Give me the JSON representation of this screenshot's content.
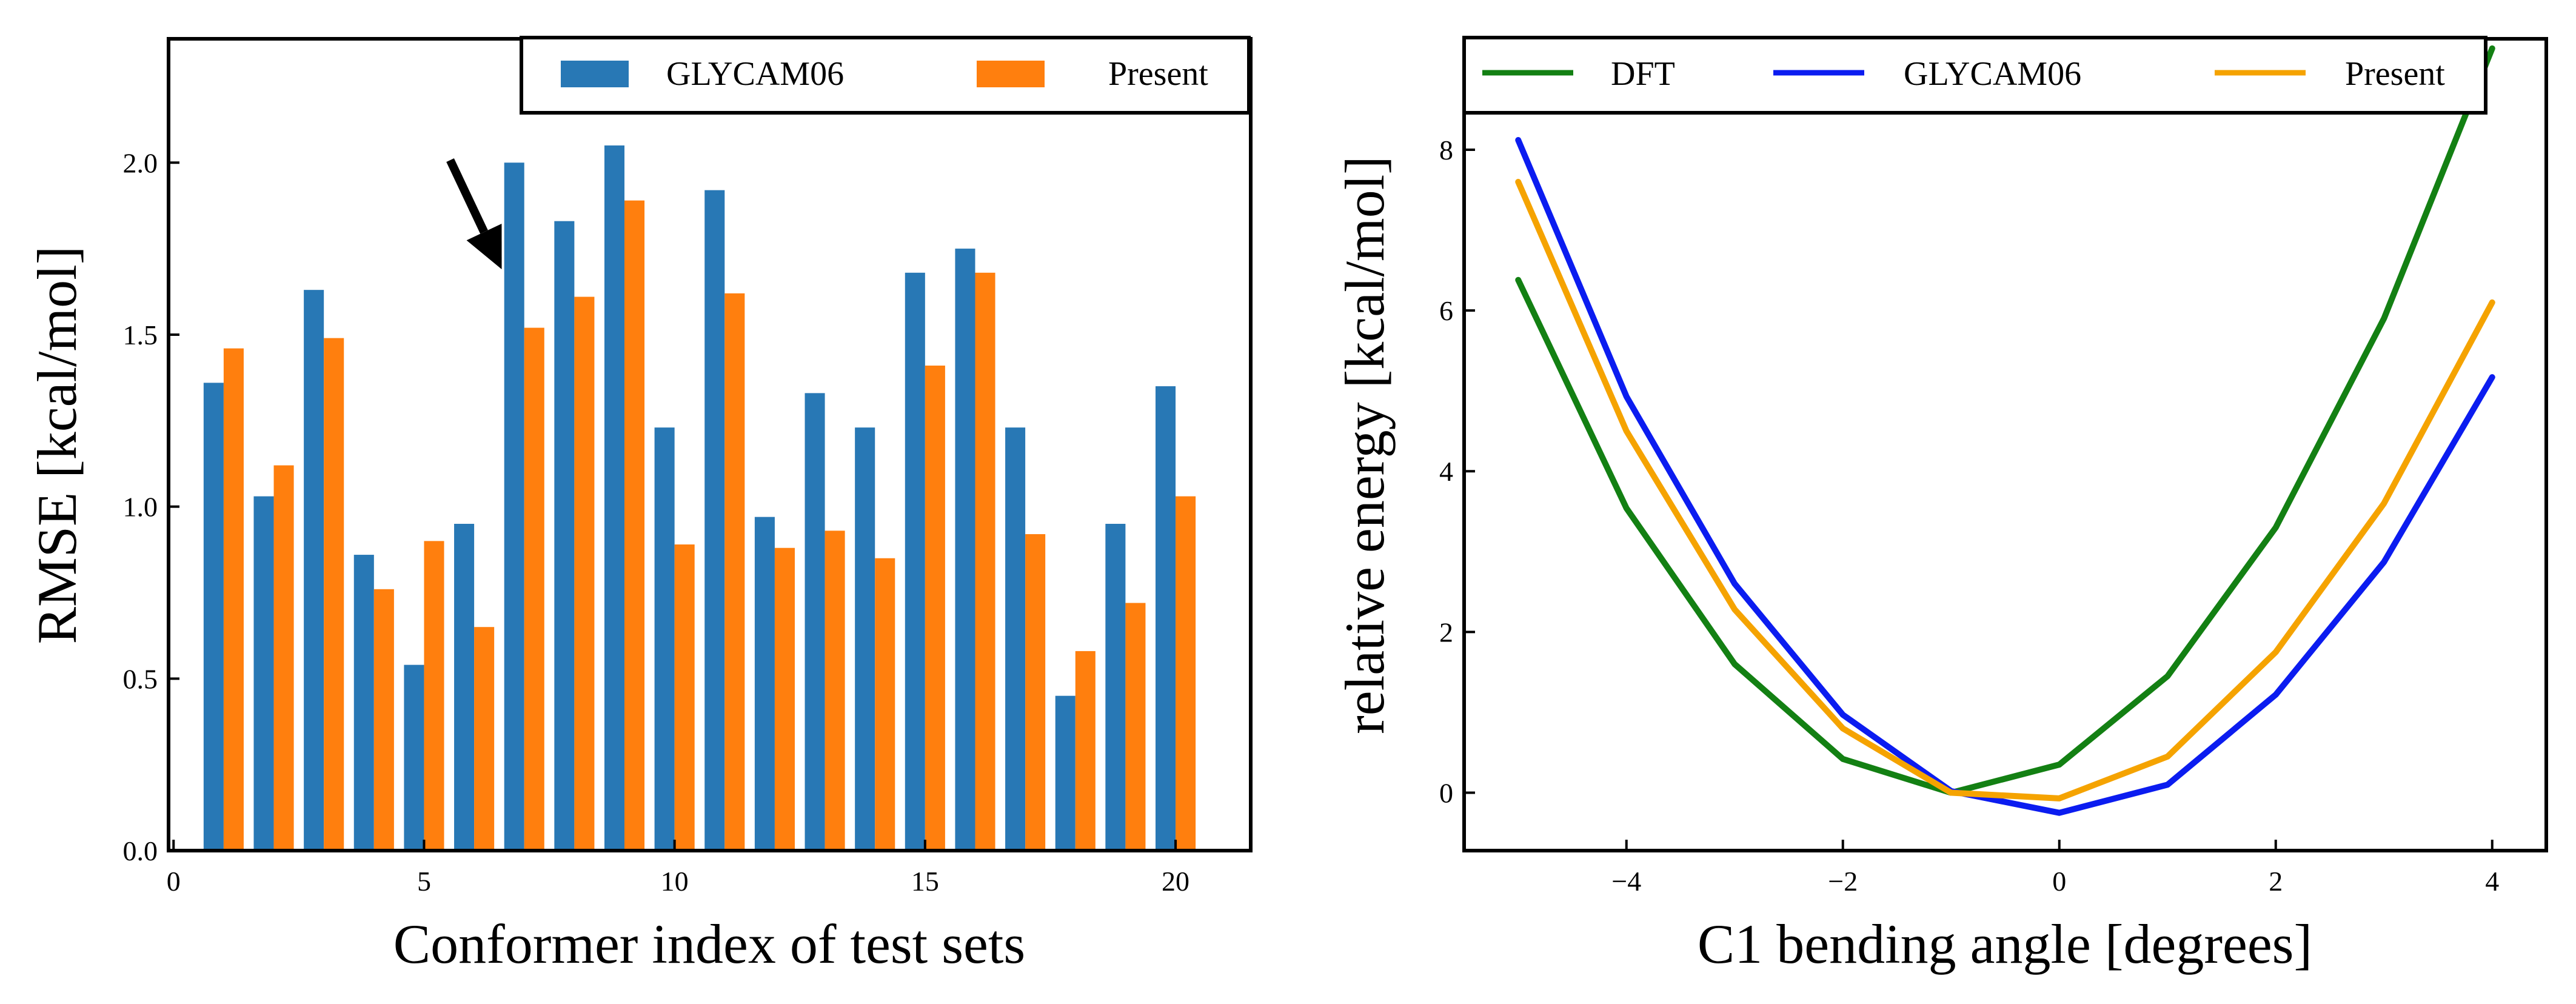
{
  "chart_data": [
    {
      "type": "bar",
      "xlabel": "Conformer index of test sets",
      "ylabel": "RMSE [kcal/mol]",
      "xlim": [
        -0.1,
        21.5
      ],
      "ylim": [
        0.0,
        2.36
      ],
      "xticks": [
        0,
        5,
        10,
        15,
        20
      ],
      "xtick_labels": [
        "0",
        "5",
        "10",
        "15",
        "20"
      ],
      "yticks": [
        0.0,
        0.5,
        1.0,
        1.5,
        2.0
      ],
      "ytick_labels": [
        "0.0",
        "0.5",
        "1.0",
        "1.5",
        "2.0"
      ],
      "legend_position": "top-right",
      "categories": [
        1,
        2,
        3,
        4,
        5,
        6,
        7,
        8,
        9,
        10,
        11,
        12,
        13,
        14,
        15,
        16,
        17,
        18,
        19,
        20
      ],
      "series": [
        {
          "name": "GLYCAM06",
          "color": "#2878b5",
          "values": [
            1.36,
            1.03,
            1.63,
            0.86,
            0.54,
            0.95,
            2.0,
            1.83,
            2.05,
            1.23,
            1.92,
            0.97,
            1.33,
            1.23,
            1.68,
            1.75,
            1.23,
            0.45,
            0.95,
            1.35
          ]
        },
        {
          "name": "Present",
          "color": "#ff7f0e",
          "values": [
            1.46,
            1.12,
            1.49,
            0.76,
            0.9,
            0.65,
            1.52,
            1.61,
            1.89,
            0.89,
            1.62,
            0.88,
            0.93,
            0.85,
            1.41,
            1.68,
            0.92,
            0.58,
            0.72,
            1.03
          ]
        }
      ],
      "annotation": {
        "type": "arrow",
        "points_to_index": 7
      }
    },
    {
      "type": "line",
      "xlabel": "C1 bending angle [degrees]",
      "ylabel": "relative energy [kcal/mol]",
      "xlim": [
        -5.5,
        4.5
      ],
      "ylim": [
        -0.72,
        9.38
      ],
      "xticks": [
        -4,
        -2,
        0,
        2,
        4
      ],
      "xtick_labels": [
        "−4",
        "−2",
        "0",
        "2",
        "4"
      ],
      "yticks": [
        0,
        2,
        4,
        6,
        8
      ],
      "ytick_labels": [
        "0",
        "2",
        "4",
        "6",
        "8"
      ],
      "legend_position": "top",
      "x": [
        -5,
        -4,
        -3,
        -2,
        -1,
        0,
        1,
        2,
        3,
        4
      ],
      "series": [
        {
          "name": "DFT",
          "color": "#138013",
          "values": [
            6.38,
            3.54,
            1.6,
            0.42,
            0.0,
            0.35,
            1.45,
            3.3,
            5.9,
            9.26
          ]
        },
        {
          "name": "GLYCAM06",
          "color": "#0b1cf0",
          "values": [
            8.12,
            4.93,
            2.6,
            0.97,
            0.02,
            -0.25,
            0.1,
            1.22,
            2.87,
            5.17
          ]
        },
        {
          "name": "Present",
          "color": "#f5a300",
          "values": [
            7.6,
            4.5,
            2.28,
            0.8,
            0.0,
            -0.07,
            0.45,
            1.75,
            3.6,
            6.1
          ]
        }
      ]
    }
  ]
}
